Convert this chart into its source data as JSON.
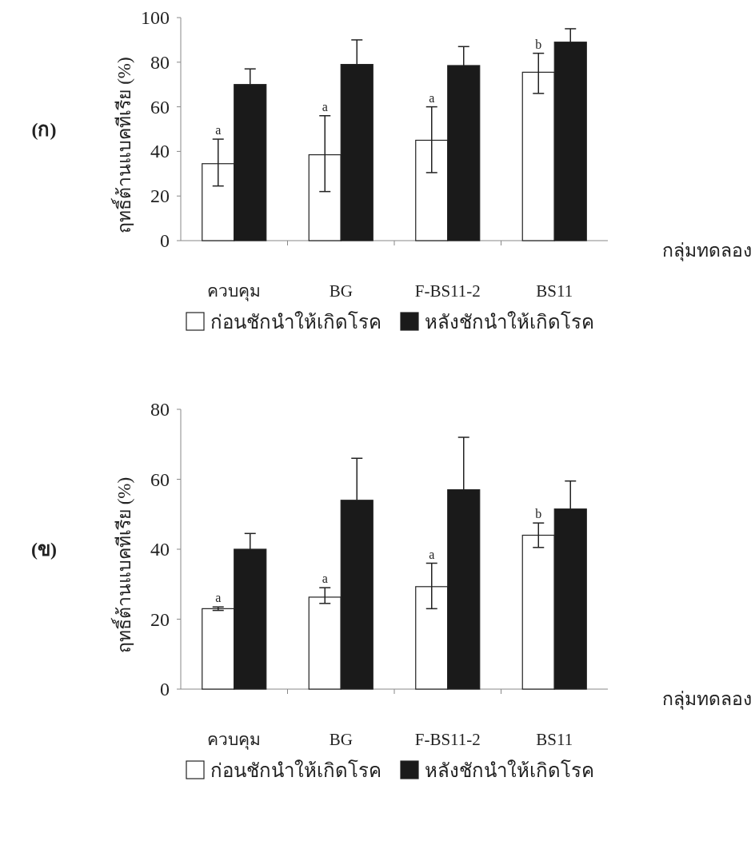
{
  "chart_data": [
    {
      "type": "bar",
      "title": "(ก)",
      "xlabel": "กลุ่มทดลอง",
      "ylabel": "ฤทธิ์ต้านแบคทีเรีย (%)",
      "categories": [
        "ควบคุม",
        "BG",
        "F-BS11-2",
        "BS11"
      ],
      "ylim": [
        0,
        100
      ],
      "yticks": [
        0,
        20,
        40,
        60,
        80,
        100
      ],
      "grid": false,
      "legend": "bottom",
      "series": [
        {
          "name": "ก่อนชักนำให้เกิดโรค",
          "color": "#ffffff",
          "values": [
            34.5,
            38.5,
            45,
            75.5
          ],
          "errors": [
            [
              24.5,
              45.5
            ],
            [
              22,
              56
            ],
            [
              30.5,
              60
            ],
            [
              66,
              84
            ]
          ]
        },
        {
          "name": "หลังชักนำให้เกิดโรค",
          "color": "#1a1a1a",
          "values": [
            70,
            79,
            78.5,
            89
          ],
          "errors": [
            [
              70,
              77
            ],
            [
              79,
              90
            ],
            [
              78.5,
              87
            ],
            [
              89,
              95
            ]
          ]
        }
      ],
      "annotations": [
        {
          "text": "a",
          "x": "ควบคุม",
          "y": 45.5
        },
        {
          "text": "a",
          "x": "BG",
          "y": 56
        },
        {
          "text": "a",
          "x": "F-BS11-2",
          "y": 60
        },
        {
          "text": "b",
          "x": "BS11",
          "y": 84
        }
      ]
    },
    {
      "type": "bar",
      "title": "(ข)",
      "xlabel": "กลุ่มทดลอง",
      "ylabel": "ฤทธิ์ต้านแบคทีเรีย (%)",
      "categories": [
        "ควบคุม",
        "BG",
        "F-BS11-2",
        "BS11"
      ],
      "ylim": [
        0,
        80
      ],
      "yticks": [
        0,
        20,
        40,
        60,
        80
      ],
      "grid": false,
      "legend": "bottom",
      "series": [
        {
          "name": "ก่อนชักนำให้เกิดโรค",
          "color": "#ffffff",
          "values": [
            23,
            26.3,
            29.3,
            44
          ],
          "errors": [
            [
              22.5,
              23.5
            ],
            [
              24.5,
              29
            ],
            [
              23,
              36
            ],
            [
              40.5,
              47.5
            ]
          ]
        },
        {
          "name": "หลังชักนำให้เกิดโรค",
          "color": "#1a1a1a",
          "values": [
            40,
            54,
            57,
            51.5
          ],
          "errors": [
            [
              40,
              44.5
            ],
            [
              54,
              66
            ],
            [
              57,
              72
            ],
            [
              51.5,
              59.5
            ]
          ]
        }
      ],
      "annotations": [
        {
          "text": "a",
          "x": "ควบคุม",
          "y": 23.5
        },
        {
          "text": "a",
          "x": "BG",
          "y": 29
        },
        {
          "text": "a",
          "x": "F-BS11-2",
          "y": 36
        },
        {
          "text": "b",
          "x": "BS11",
          "y": 47.5
        }
      ]
    }
  ]
}
